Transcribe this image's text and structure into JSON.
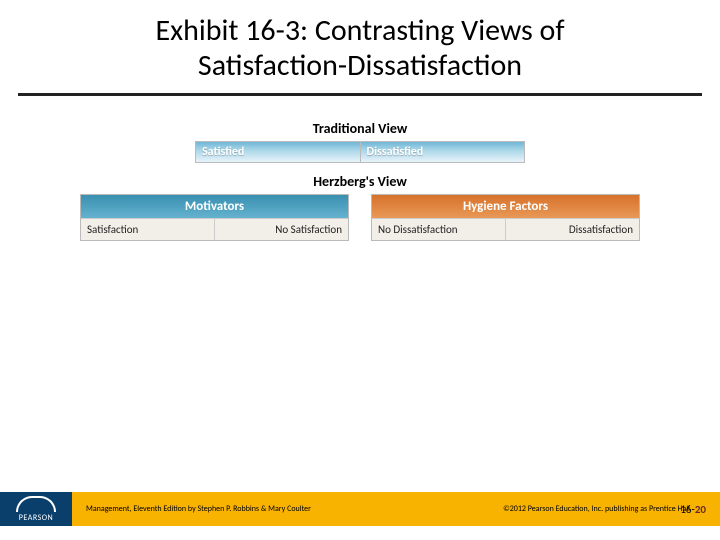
{
  "title": "Exhibit 16-3: Contrasting Views of Satisfaction-Dissatisfaction",
  "traditional": {
    "heading": "Traditional View",
    "left": "Satisfied",
    "right": "Dissatisfied"
  },
  "herzberg": {
    "heading": "Herzberg's View",
    "motivators": {
      "header": "Motivators",
      "left": "Satisfaction",
      "right": "No Satisfaction"
    },
    "hygiene": {
      "header": "Hygiene Factors",
      "left": "No Dissatisfaction",
      "right": "Dissatisfaction"
    }
  },
  "footer": {
    "logo": "PEARSON",
    "attribution": "Management, Eleventh Edition by Stephen P. Robbins & Mary Coulter",
    "copyright": "©2012 Pearson Education, Inc. publishing as Prentice Hall",
    "page_prefix": "16-",
    "page_number": "20"
  },
  "colors": {
    "footer_bg": "#f8b200",
    "logo_bg": "#0a3f6b",
    "motivators_bg": "#3a8fb0",
    "hygiene_bg": "#d6722b",
    "trad_bar_bg": "#6fb6d6"
  }
}
